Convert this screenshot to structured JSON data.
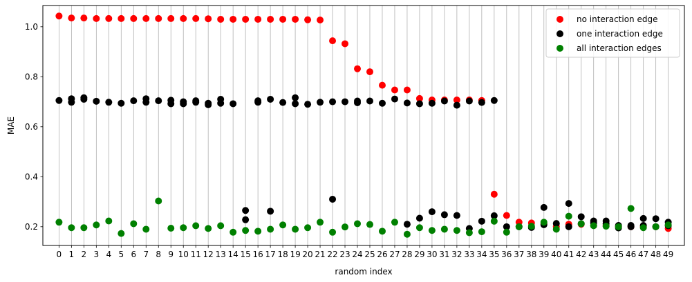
{
  "chart_data": {
    "type": "scatter",
    "xlabel": "random index",
    "ylabel": "MAE",
    "x_ticks": [
      0,
      1,
      2,
      3,
      4,
      5,
      6,
      7,
      8,
      9,
      10,
      11,
      12,
      13,
      14,
      15,
      16,
      17,
      18,
      19,
      20,
      21,
      22,
      23,
      24,
      25,
      26,
      27,
      28,
      29,
      30,
      31,
      32,
      33,
      34,
      35,
      36,
      37,
      38,
      39,
      40,
      41,
      42,
      43,
      44,
      45,
      46,
      47,
      48,
      49
    ],
    "y_ticks": [
      0.2,
      0.4,
      0.6,
      0.8,
      1.0
    ],
    "xlim": [
      -1.3,
      50.3
    ],
    "ylim": [
      0.125,
      1.085
    ],
    "vertical_gridlines": true,
    "legend_position": "top-right",
    "series": [
      {
        "name": "no interaction edge",
        "color": "#ff0000",
        "points": [
          [
            0,
            1.043
          ],
          [
            1,
            1.035
          ],
          [
            2,
            1.035
          ],
          [
            3,
            1.033
          ],
          [
            4,
            1.033
          ],
          [
            5,
            1.033
          ],
          [
            6,
            1.033
          ],
          [
            7,
            1.033
          ],
          [
            8,
            1.033
          ],
          [
            9,
            1.033
          ],
          [
            10,
            1.033
          ],
          [
            11,
            1.033
          ],
          [
            12,
            1.032
          ],
          [
            13,
            1.03
          ],
          [
            14,
            1.03
          ],
          [
            15,
            1.03
          ],
          [
            16,
            1.03
          ],
          [
            17,
            1.03
          ],
          [
            18,
            1.03
          ],
          [
            19,
            1.03
          ],
          [
            20,
            1.028
          ],
          [
            21,
            1.027
          ],
          [
            22,
            0.944
          ],
          [
            23,
            0.932
          ],
          [
            24,
            0.832
          ],
          [
            25,
            0.82
          ],
          [
            26,
            0.766
          ],
          [
            27,
            0.747
          ],
          [
            28,
            0.747
          ],
          [
            29,
            0.713
          ],
          [
            30,
            0.707
          ],
          [
            31,
            0.707
          ],
          [
            32,
            0.707
          ],
          [
            33,
            0.707
          ],
          [
            34,
            0.705
          ],
          [
            35,
            0.33
          ],
          [
            36,
            0.245
          ],
          [
            37,
            0.218
          ],
          [
            38,
            0.215
          ],
          [
            39,
            0.213
          ],
          [
            40,
            0.2
          ],
          [
            41,
            0.21
          ],
          [
            42,
            0.21
          ],
          [
            43,
            0.205
          ],
          [
            44,
            0.205
          ],
          [
            45,
            0.2
          ],
          [
            46,
            0.2
          ],
          [
            47,
            0.2
          ],
          [
            48,
            0.2
          ],
          [
            49,
            0.193
          ]
        ]
      },
      {
        "name": "one interaction edge",
        "color": "#000000",
        "points": [
          [
            0,
            0.705
          ],
          [
            1,
            0.712
          ],
          [
            1,
            0.698
          ],
          [
            2,
            0.716
          ],
          [
            2,
            0.71
          ],
          [
            3,
            0.702
          ],
          [
            4,
            0.698
          ],
          [
            5,
            0.694
          ],
          [
            6,
            0.704
          ],
          [
            7,
            0.712
          ],
          [
            7,
            0.698
          ],
          [
            8,
            0.704
          ],
          [
            9,
            0.706
          ],
          [
            9,
            0.692
          ],
          [
            10,
            0.7
          ],
          [
            10,
            0.692
          ],
          [
            11,
            0.704
          ],
          [
            11,
            0.698
          ],
          [
            12,
            0.694
          ],
          [
            12,
            0.688
          ],
          [
            13,
            0.71
          ],
          [
            13,
            0.694
          ],
          [
            14,
            0.692
          ],
          [
            15,
            0.265
          ],
          [
            15,
            0.228
          ],
          [
            16,
            0.704
          ],
          [
            16,
            0.698
          ],
          [
            17,
            0.71
          ],
          [
            17,
            0.262
          ],
          [
            18,
            0.697
          ],
          [
            19,
            0.716
          ],
          [
            19,
            0.692
          ],
          [
            20,
            0.69
          ],
          [
            21,
            0.698
          ],
          [
            22,
            0.7
          ],
          [
            22,
            0.31
          ],
          [
            23,
            0.7
          ],
          [
            24,
            0.703
          ],
          [
            24,
            0.696
          ],
          [
            25,
            0.703
          ],
          [
            26,
            0.694
          ],
          [
            27,
            0.711
          ],
          [
            28,
            0.695
          ],
          [
            28,
            0.21
          ],
          [
            29,
            0.692
          ],
          [
            29,
            0.234
          ],
          [
            30,
            0.694
          ],
          [
            30,
            0.26
          ],
          [
            31,
            0.703
          ],
          [
            31,
            0.248
          ],
          [
            32,
            0.686
          ],
          [
            32,
            0.245
          ],
          [
            33,
            0.703
          ],
          [
            33,
            0.193
          ],
          [
            34,
            0.697
          ],
          [
            34,
            0.222
          ],
          [
            35,
            0.705
          ],
          [
            35,
            0.244
          ],
          [
            36,
            0.2
          ],
          [
            37,
            0.2
          ],
          [
            38,
            0.197
          ],
          [
            39,
            0.277
          ],
          [
            39,
            0.208
          ],
          [
            40,
            0.213
          ],
          [
            41,
            0.293
          ],
          [
            41,
            0.2
          ],
          [
            42,
            0.24
          ],
          [
            42,
            0.212
          ],
          [
            43,
            0.223
          ],
          [
            43,
            0.215
          ],
          [
            44,
            0.223
          ],
          [
            44,
            0.212
          ],
          [
            45,
            0.205
          ],
          [
            45,
            0.195
          ],
          [
            46,
            0.205
          ],
          [
            46,
            0.2
          ],
          [
            47,
            0.233
          ],
          [
            47,
            0.205
          ],
          [
            48,
            0.232
          ],
          [
            48,
            0.2
          ],
          [
            49,
            0.218
          ],
          [
            49,
            0.204
          ]
        ]
      },
      {
        "name": "all interaction edges",
        "color": "#008000",
        "points": [
          [
            0,
            0.218
          ],
          [
            1,
            0.196
          ],
          [
            2,
            0.196
          ],
          [
            3,
            0.207
          ],
          [
            4,
            0.223
          ],
          [
            5,
            0.173
          ],
          [
            6,
            0.212
          ],
          [
            7,
            0.19
          ],
          [
            8,
            0.303
          ],
          [
            9,
            0.194
          ],
          [
            10,
            0.196
          ],
          [
            11,
            0.204
          ],
          [
            12,
            0.193
          ],
          [
            13,
            0.204
          ],
          [
            14,
            0.178
          ],
          [
            15,
            0.185
          ],
          [
            16,
            0.182
          ],
          [
            17,
            0.19
          ],
          [
            18,
            0.207
          ],
          [
            19,
            0.19
          ],
          [
            20,
            0.196
          ],
          [
            21,
            0.218
          ],
          [
            22,
            0.178
          ],
          [
            23,
            0.199
          ],
          [
            24,
            0.212
          ],
          [
            25,
            0.209
          ],
          [
            26,
            0.182
          ],
          [
            27,
            0.218
          ],
          [
            28,
            0.17
          ],
          [
            29,
            0.196
          ],
          [
            30,
            0.185
          ],
          [
            31,
            0.19
          ],
          [
            32,
            0.185
          ],
          [
            33,
            0.176
          ],
          [
            34,
            0.18
          ],
          [
            35,
            0.222
          ],
          [
            36,
            0.178
          ],
          [
            37,
            0.2
          ],
          [
            38,
            0.202
          ],
          [
            39,
            0.218
          ],
          [
            40,
            0.19
          ],
          [
            41,
            0.242
          ],
          [
            42,
            0.212
          ],
          [
            43,
            0.204
          ],
          [
            44,
            0.202
          ],
          [
            45,
            0.2
          ],
          [
            46,
            0.273
          ],
          [
            47,
            0.196
          ],
          [
            48,
            0.2
          ],
          [
            49,
            0.207
          ]
        ]
      }
    ]
  }
}
